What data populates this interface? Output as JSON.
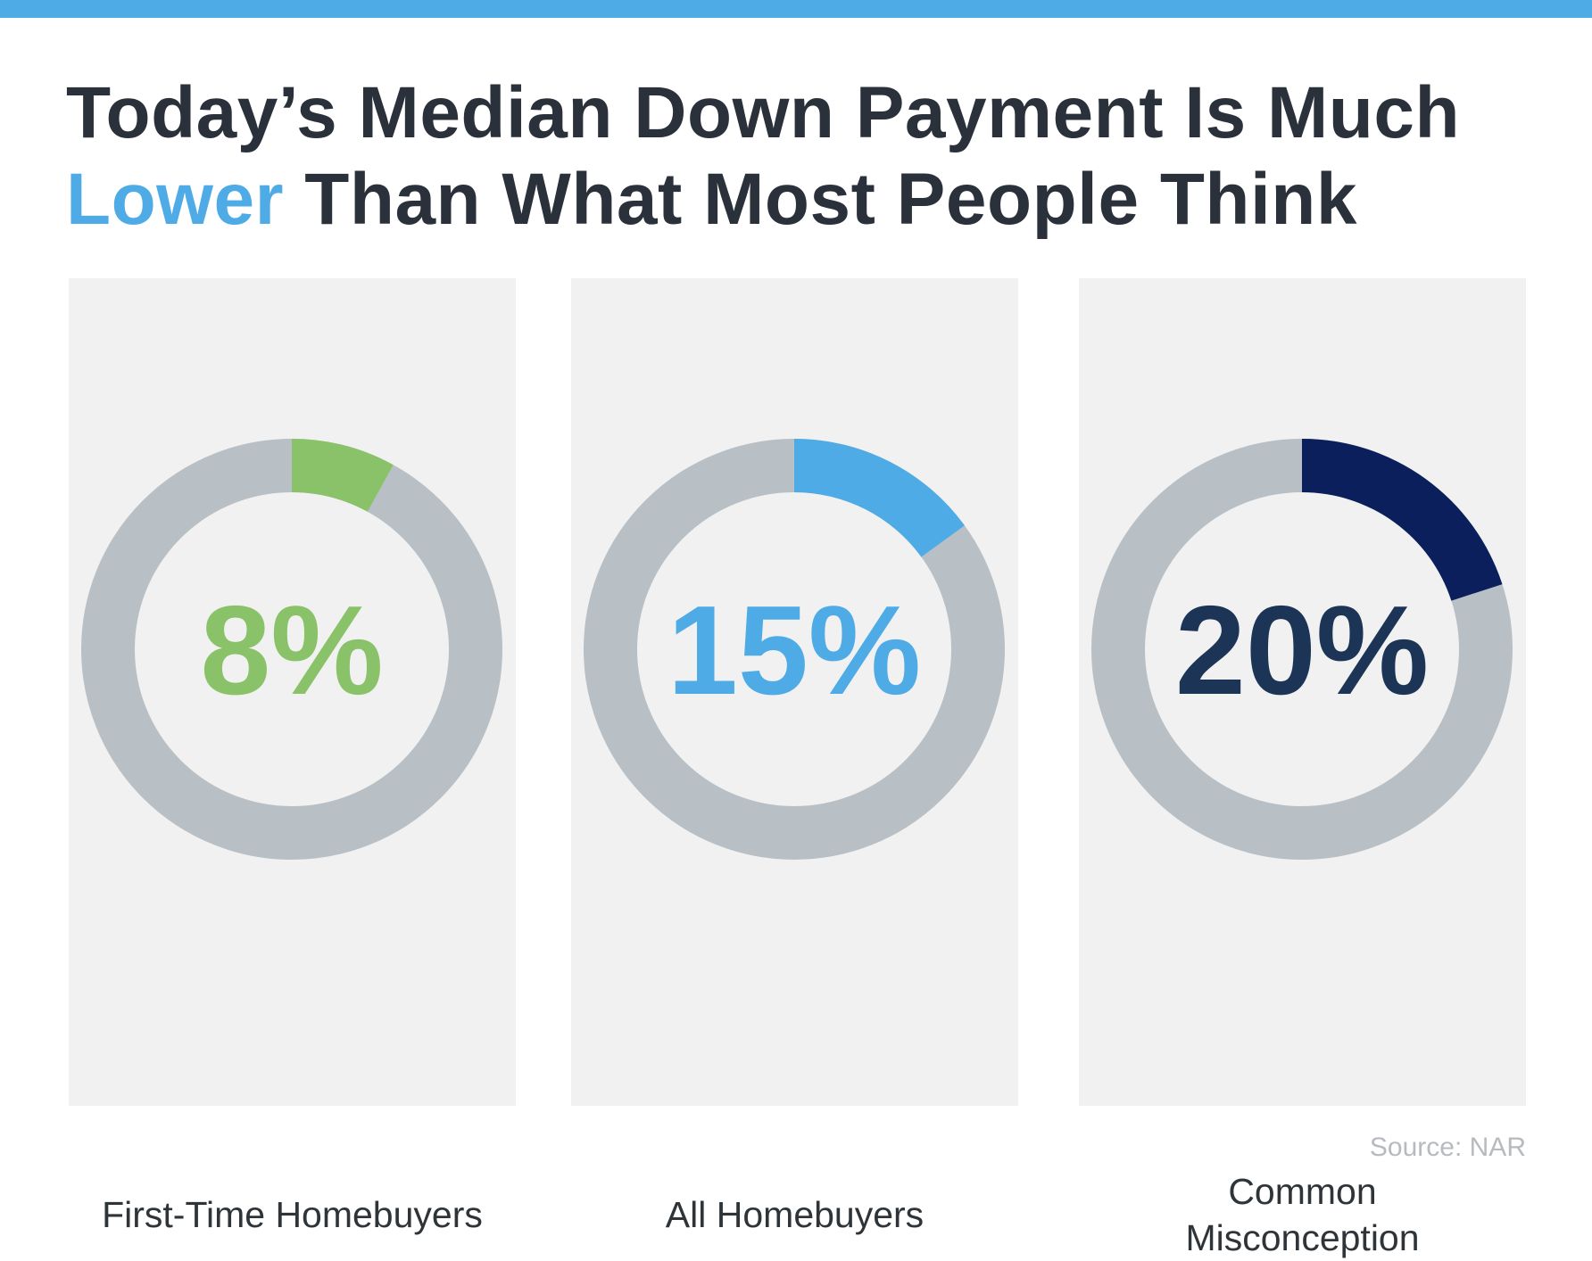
{
  "header": {
    "title_line1": "Today’s Median Down Payment Is Much",
    "title_accent": "Lower",
    "title_rest": " Than What Most People Think"
  },
  "colors": {
    "top_bar": "#4eabe6",
    "track": "#b8c0c5",
    "panel_bg": "#f1f1f1",
    "first_time": "#89c268",
    "all": "#4eabe6",
    "misconception": "#0a1f5c",
    "misconception_text": "#1c3557"
  },
  "chart_data": {
    "type": "pie",
    "unit": "%",
    "items": [
      {
        "label": "First-Time Homebuyers",
        "value": 8,
        "display": "8%",
        "color": "#89c268",
        "text_color": "#89c268"
      },
      {
        "label": "All Homebuyers",
        "value": 15,
        "display": "15%",
        "color": "#4eabe6",
        "text_color": "#4eabe6"
      },
      {
        "label": "Common Misconception",
        "value": 20,
        "display": "20%",
        "color": "#0a1f5c",
        "text_color": "#1c3557"
      }
    ]
  },
  "footer": {
    "source": "Source: NAR"
  }
}
